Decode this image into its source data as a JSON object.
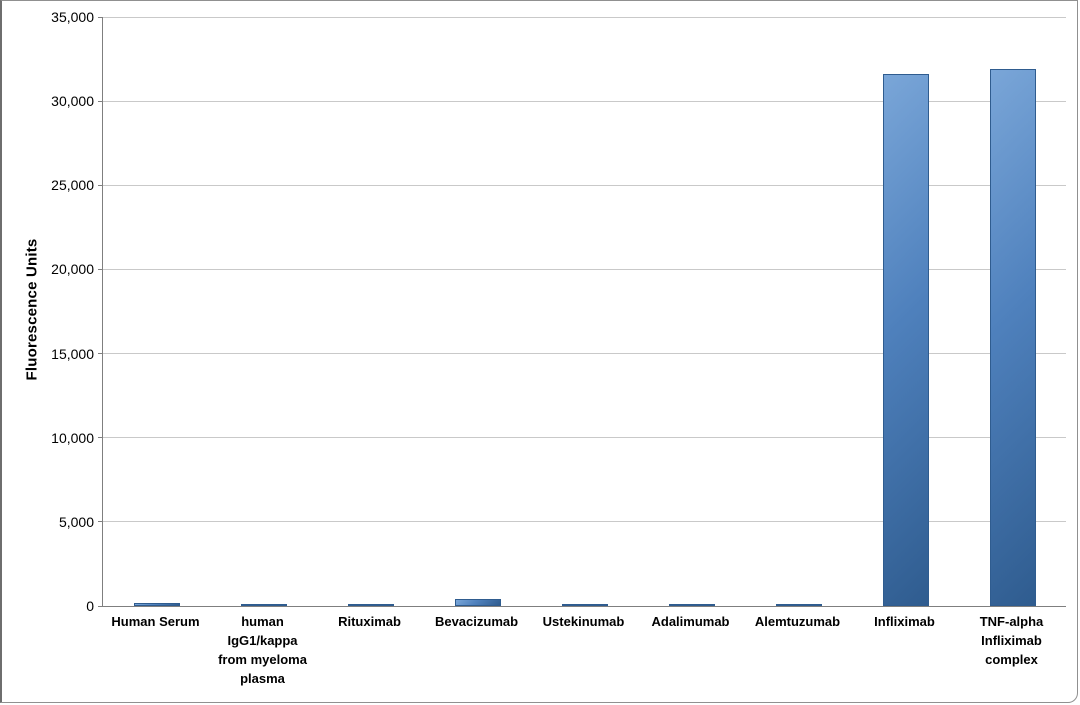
{
  "chart_data": {
    "type": "bar",
    "title": "",
    "xlabel": "",
    "ylabel": "Fluorescence Units",
    "ylim": [
      0,
      35000
    ],
    "grid": true,
    "legend": "none",
    "categories": [
      "Human Serum",
      "human\nIgG1/kappa\nfrom myeloma\nplasma",
      "Rituximab",
      "Bevacizumab",
      "Ustekinumab",
      "Adalimumab",
      "Alemtuzumab",
      "Infliximab",
      "TNF-alpha\nInfliximab\ncomplex"
    ],
    "values": [
      200,
      100,
      120,
      400,
      120,
      130,
      100,
      31600,
      31900
    ],
    "yticks": [
      0,
      5000,
      10000,
      15000,
      20000,
      25000,
      30000,
      35000
    ],
    "ytick_labels": [
      "0",
      "5,000",
      "10,000",
      "15,000",
      "20,000",
      "25,000",
      "30,000",
      "35,000"
    ],
    "bar_color_light": "#7aa6d8",
    "bar_color_mid": "#4f81bd",
    "bar_color_dark": "#2f5c8f",
    "gridline_color": "#c9c9c9",
    "axis_color": "#7f7f7f"
  }
}
